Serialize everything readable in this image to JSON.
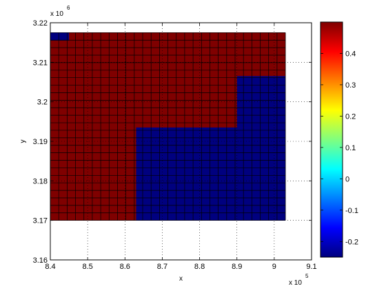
{
  "chart_data": [
    {
      "type": "heatmap",
      "title": "",
      "xlabel": "x",
      "ylabel": "y",
      "x_exponent_label": "x 10",
      "x_exponent_power": "5",
      "y_exponent_label": "x 10",
      "y_exponent_power": "6",
      "xlim": [
        8.4,
        9.1
      ],
      "ylim": [
        3.16,
        3.22
      ],
      "x_ticks": [
        8.4,
        8.5,
        8.6,
        8.7,
        8.8,
        8.9,
        9.0,
        9.1
      ],
      "x_tick_labels": [
        "8.4",
        "8.5",
        "8.6",
        "8.7",
        "8.8",
        "8.9",
        "9",
        "9.1"
      ],
      "y_ticks": [
        3.16,
        3.17,
        3.18,
        3.19,
        3.2,
        3.21,
        3.22
      ],
      "y_tick_labels": [
        "3.16",
        "3.17",
        "3.18",
        "3.19",
        "3.2",
        "3.21",
        "3.22"
      ],
      "grid": true,
      "cells": {
        "x_start": 8.4,
        "x_end": 9.03,
        "y_start": 3.17,
        "y_end": 3.2175,
        "n_cols": 28,
        "n_rows": 25
      },
      "regions": [
        {
          "name": "high",
          "value": 0.5,
          "color": "#7f0000",
          "x": [
            8.4,
            9.03
          ],
          "y": [
            3.17,
            3.2175
          ]
        },
        {
          "name": "low",
          "value": -0.25,
          "color": "#00007f",
          "x": [
            8.63,
            9.03
          ],
          "y": [
            3.17,
            3.1935
          ]
        },
        {
          "name": "low",
          "value": -0.25,
          "color": "#00007f",
          "x": [
            8.9,
            9.03
          ],
          "y": [
            3.1935,
            3.2065
          ]
        },
        {
          "name": "low",
          "value": -0.25,
          "color": "#00007f",
          "x": [
            8.4,
            8.45
          ],
          "y": [
            3.2155,
            3.2175
          ]
        }
      ]
    },
    {
      "type": "colorbar",
      "colormap": "jet",
      "clim": [
        -0.25,
        0.5
      ],
      "ticks": [
        -0.2,
        -0.1,
        0,
        0.1,
        0.2,
        0.3,
        0.4
      ],
      "tick_labels": [
        "-0.2",
        "-0.1",
        "0",
        "0.1",
        "0.2",
        "0.3",
        "0.4"
      ]
    }
  ]
}
